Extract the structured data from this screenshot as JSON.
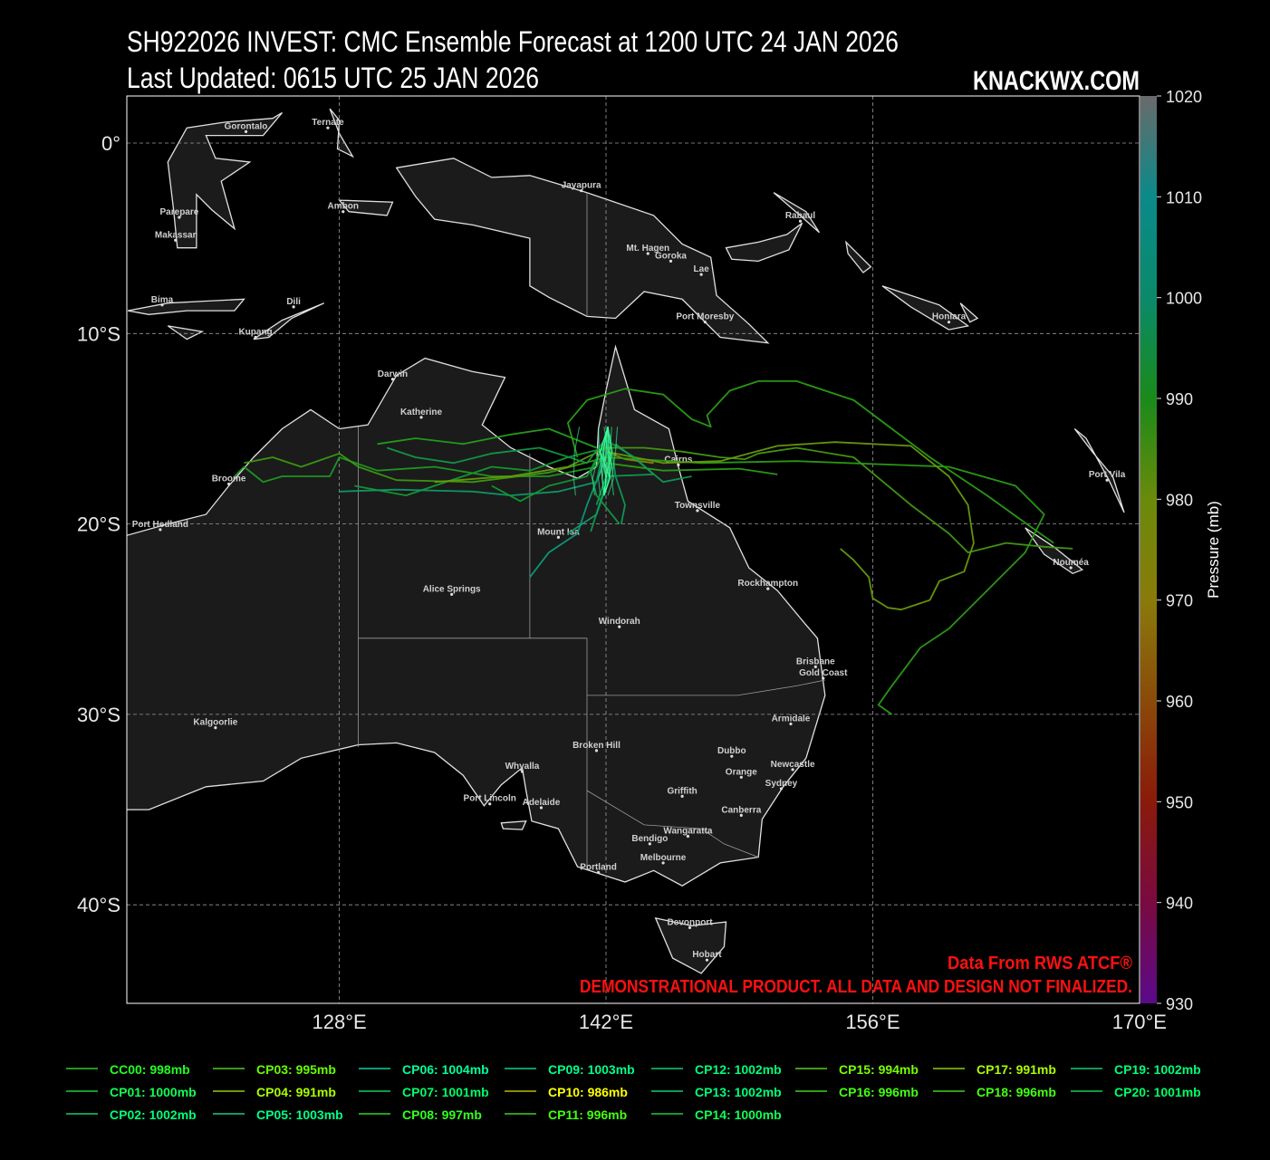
{
  "header": {
    "title": "SH922026 INVEST: CMC Ensemble Forecast at 1200 UTC 24 JAN 2026",
    "updated": "Last Updated: 0615 UTC 25 JAN 2026",
    "brand": "KNACKWX.COM"
  },
  "footer": {
    "source": "Data From RWS ATCF®",
    "disclaimer": "DEMONSTRATIONAL PRODUCT. ALL DATA AND DESIGN NOT FINALIZED."
  },
  "map": {
    "extent_lon": [
      116.8,
      170
    ],
    "extent_lat": [
      -45.2,
      2.5
    ],
    "lon_ticks": [
      {
        "v": 128,
        "label": "128°E"
      },
      {
        "v": 142,
        "label": "142°E"
      },
      {
        "v": 156,
        "label": "156°E"
      },
      {
        "v": 170,
        "label": "170°E"
      }
    ],
    "lat_ticks": [
      {
        "v": 0,
        "label": "0°"
      },
      {
        "v": -10,
        "label": "10°S"
      },
      {
        "v": -20,
        "label": "20°S"
      },
      {
        "v": -30,
        "label": "30°S"
      },
      {
        "v": -40,
        "label": "40°S"
      }
    ],
    "colors": {
      "land": "#1b1b1b",
      "ocean": "#000000",
      "coast": "#e0e0e0",
      "grid": "#9a9a9a"
    },
    "cities": [
      {
        "name": "Gorontalo",
        "lon": 123.1,
        "lat": 0.6
      },
      {
        "name": "Ternate",
        "lon": 127.4,
        "lat": 0.8
      },
      {
        "name": "Jayapura",
        "lon": 140.7,
        "lat": -2.5
      },
      {
        "name": "Parepare",
        "lon": 119.6,
        "lat": -3.9
      },
      {
        "name": "Makassar",
        "lon": 119.4,
        "lat": -5.1
      },
      {
        "name": "Ambon",
        "lon": 128.2,
        "lat": -3.6
      },
      {
        "name": "Rabaul",
        "lon": 152.2,
        "lat": -4.1
      },
      {
        "name": "Mt. Hagen",
        "lon": 144.2,
        "lat": -5.8
      },
      {
        "name": "Goroka",
        "lon": 145.4,
        "lat": -6.2
      },
      {
        "name": "Lae",
        "lon": 147.0,
        "lat": -6.9
      },
      {
        "name": "Port Moresby",
        "lon": 147.2,
        "lat": -9.4
      },
      {
        "name": "Honiara",
        "lon": 160.0,
        "lat": -9.4
      },
      {
        "name": "Bima",
        "lon": 118.7,
        "lat": -8.5
      },
      {
        "name": "Dili",
        "lon": 125.6,
        "lat": -8.6
      },
      {
        "name": "Kupang",
        "lon": 123.6,
        "lat": -10.2
      },
      {
        "name": "Darwin",
        "lon": 130.8,
        "lat": -12.4
      },
      {
        "name": "Katherine",
        "lon": 132.3,
        "lat": -14.4
      },
      {
        "name": "Broome",
        "lon": 122.2,
        "lat": -17.9
      },
      {
        "name": "Port Hedland",
        "lon": 118.6,
        "lat": -20.3
      },
      {
        "name": "Cairns",
        "lon": 145.8,
        "lat": -16.9
      },
      {
        "name": "Townsville",
        "lon": 146.8,
        "lat": -19.3
      },
      {
        "name": "Mount Isa",
        "lon": 139.5,
        "lat": -20.7
      },
      {
        "name": "Port Vila",
        "lon": 168.3,
        "lat": -17.7
      },
      {
        "name": "Nouméa",
        "lon": 166.4,
        "lat": -22.3
      },
      {
        "name": "Alice Springs",
        "lon": 133.9,
        "lat": -23.7
      },
      {
        "name": "Rockhampton",
        "lon": 150.5,
        "lat": -23.4
      },
      {
        "name": "Windorah",
        "lon": 142.7,
        "lat": -25.4
      },
      {
        "name": "Brisbane",
        "lon": 153.0,
        "lat": -27.5
      },
      {
        "name": "Gold Coast",
        "lon": 153.4,
        "lat": -28.1
      },
      {
        "name": "Armidale",
        "lon": 151.7,
        "lat": -30.5
      },
      {
        "name": "Kalgoorlie",
        "lon": 121.5,
        "lat": -30.7
      },
      {
        "name": "Broken Hill",
        "lon": 141.5,
        "lat": -31.9
      },
      {
        "name": "Dubbo",
        "lon": 148.6,
        "lat": -32.2
      },
      {
        "name": "Orange",
        "lon": 149.1,
        "lat": -33.3
      },
      {
        "name": "Newcastle",
        "lon": 151.8,
        "lat": -32.9
      },
      {
        "name": "Sydney",
        "lon": 151.2,
        "lat": -33.9
      },
      {
        "name": "Whyalla",
        "lon": 137.6,
        "lat": -33.0
      },
      {
        "name": "Port Lincoln",
        "lon": 135.9,
        "lat": -34.7
      },
      {
        "name": "Adelaide",
        "lon": 138.6,
        "lat": -34.9
      },
      {
        "name": "Griffith",
        "lon": 146.0,
        "lat": -34.3
      },
      {
        "name": "Canberra",
        "lon": 149.1,
        "lat": -35.3
      },
      {
        "name": "Wangaratta",
        "lon": 146.3,
        "lat": -36.4
      },
      {
        "name": "Bendigo",
        "lon": 144.3,
        "lat": -36.8
      },
      {
        "name": "Melbourne",
        "lon": 145.0,
        "lat": -37.8
      },
      {
        "name": "Portland",
        "lon": 141.6,
        "lat": -38.3
      },
      {
        "name": "Devonport",
        "lon": 146.4,
        "lat": -41.2
      },
      {
        "name": "Hobart",
        "lon": 147.3,
        "lat": -42.9
      }
    ]
  },
  "colorbar": {
    "label": "Pressure (mb)",
    "range": [
      930,
      1020
    ],
    "ticks": [
      "930",
      "940",
      "950",
      "960",
      "970",
      "980",
      "990",
      "1000",
      "1010",
      "1020"
    ],
    "stops": [
      "#5a0a8a",
      "#7a0a40",
      "#8a1a0a",
      "#8a4a0a",
      "#8a7a0a",
      "#6a8a0a",
      "#1a8a1a",
      "#0a8a6a",
      "#0a8a8a",
      "#6a6a6a"
    ]
  },
  "members": [
    {
      "label": "CC00: 998mb",
      "color": "#1f9a22",
      "label_color": "#22ff22",
      "track": [
        [
          142,
          -16
        ],
        [
          141.5,
          -17
        ],
        [
          139,
          -17.5
        ],
        [
          136,
          -17.5
        ],
        [
          133,
          -17
        ],
        [
          130,
          -17.2
        ],
        [
          128,
          -16.5
        ],
        [
          127.5,
          -17.5
        ],
        [
          125,
          -17.5
        ],
        [
          124,
          -17.8
        ],
        [
          123,
          -17
        ],
        [
          122.5,
          -17.5
        ]
      ]
    },
    {
      "label": "CP01: 1000mb",
      "color": "#129a30",
      "label_color": "#11ff55",
      "track": [
        [
          142,
          -16
        ],
        [
          140,
          -16.5
        ],
        [
          138,
          -17.2
        ],
        [
          136,
          -17
        ],
        [
          133,
          -18
        ],
        [
          131.5,
          -18.5
        ],
        [
          128.8,
          -18
        ]
      ]
    },
    {
      "label": "CP02: 1002mb",
      "color": "#0f9a55",
      "label_color": "#00ff77",
      "track": [
        [
          142.5,
          -15.8
        ],
        [
          143.8,
          -16.8
        ],
        [
          145,
          -17.8
        ],
        [
          146.5,
          -17.5
        ]
      ]
    },
    {
      "label": "CP03: 995mb",
      "color": "#3c9a12",
      "label_color": "#66ff00",
      "track": [
        [
          142,
          -16.5
        ],
        [
          139,
          -17.3
        ],
        [
          135,
          -17.8
        ],
        [
          131,
          -17.7
        ],
        [
          129,
          -17
        ],
        [
          128,
          -16.3
        ],
        [
          126,
          -17
        ],
        [
          124.5,
          -16.5
        ],
        [
          123,
          -16.8
        ]
      ]
    },
    {
      "label": "CP04: 991mb",
      "color": "#6a9a0a",
      "label_color": "#aaff00",
      "track": [
        [
          142,
          -16
        ],
        [
          140,
          -17
        ],
        [
          137,
          -17.5
        ],
        [
          135.5,
          -17.6
        ],
        [
          133,
          -17.8
        ]
      ]
    },
    {
      "label": "CP05: 1003mb",
      "color": "#0e9a66",
      "label_color": "#00ff88",
      "track": [
        [
          142,
          -15.5
        ],
        [
          142.2,
          -17.5
        ],
        [
          141.5,
          -19.5
        ],
        [
          140,
          -20.5
        ]
      ]
    },
    {
      "label": "CP06: 1004mb",
      "color": "#0d9a78",
      "label_color": "#00ff99",
      "track": [
        [
          142,
          -15.3
        ],
        [
          141.8,
          -17
        ],
        [
          141,
          -19
        ],
        [
          140.5,
          -20.5
        ],
        [
          139,
          -21.5
        ],
        [
          138,
          -22.8
        ]
      ]
    },
    {
      "label": "CP07: 1001mb",
      "color": "#109a44",
      "label_color": "#00ff66",
      "track": [
        [
          142,
          -15.5
        ],
        [
          141,
          -16.8
        ],
        [
          138.5,
          -16
        ],
        [
          136,
          -16.3
        ],
        [
          134,
          -16.8
        ],
        [
          132,
          -16.5
        ],
        [
          130.5,
          -16
        ]
      ]
    },
    {
      "label": "CP08: 997mb",
      "color": "#23a01a",
      "label_color": "#33ff22",
      "track": [
        [
          141.5,
          -16
        ],
        [
          139,
          -15
        ],
        [
          137,
          -15.3
        ],
        [
          134.5,
          -15.8
        ],
        [
          132,
          -15.5
        ],
        [
          130,
          -15.8
        ]
      ]
    },
    {
      "label": "CP09: 1003mb",
      "color": "#0e9a66",
      "label_color": "#00ff88",
      "track": [
        [
          142,
          -15.5
        ],
        [
          141.5,
          -17.8
        ],
        [
          139.5,
          -18.3
        ],
        [
          137,
          -18.5
        ],
        [
          135,
          -18.3
        ],
        [
          131,
          -18.2
        ],
        [
          128,
          -18.3
        ]
      ]
    },
    {
      "label": "CP10: 986mb",
      "color": "#8a8a0a",
      "label_color": "#ffff00",
      "track": [
        [
          142,
          -16.2
        ],
        [
          143,
          -16.6
        ],
        [
          144.5,
          -16.8
        ]
      ]
    },
    {
      "label": "CP11: 996mb",
      "color": "#2a9e16",
      "label_color": "#44ff11",
      "track": [
        [
          140.5,
          -16.5
        ],
        [
          140,
          -14.7
        ],
        [
          141,
          -13.5
        ],
        [
          143,
          -12.9
        ],
        [
          145,
          -13.2
        ],
        [
          146.5,
          -14.5
        ],
        [
          147.5,
          -14.9
        ],
        [
          147.3,
          -14.3
        ],
        [
          148.5,
          -13
        ],
        [
          150,
          -12.5
        ],
        [
          152,
          -12.5
        ],
        [
          155,
          -13.5
        ],
        [
          157,
          -15
        ],
        [
          159,
          -16.5
        ],
        [
          162,
          -18.5
        ],
        [
          164.5,
          -20.3
        ],
        [
          165.5,
          -21
        ]
      ]
    },
    {
      "label": "CP12: 1002mb",
      "color": "#0f9a55",
      "label_color": "#00ff77",
      "track": [
        [
          142.2,
          -15.3
        ],
        [
          142.5,
          -17.5
        ],
        [
          143,
          -19
        ],
        [
          142.8,
          -20
        ]
      ]
    },
    {
      "label": "CP13: 1002mb",
      "color": "#0f9a55",
      "label_color": "#00ff77",
      "track": [
        [
          142,
          -15.5
        ],
        [
          142.3,
          -17
        ],
        [
          141.8,
          -18.5
        ],
        [
          141.2,
          -20.4
        ]
      ]
    },
    {
      "label": "CP14: 1000mb",
      "color": "#129a30",
      "label_color": "#11ff55",
      "track": [
        [
          141.8,
          -16
        ],
        [
          141,
          -17.5
        ],
        [
          139,
          -18
        ],
        [
          137.5,
          -18.8
        ],
        [
          136,
          -18
        ]
      ]
    },
    {
      "label": "CP15: 994mb",
      "color": "#449a12",
      "label_color": "#77ff00",
      "track": [
        [
          142,
          -16
        ],
        [
          144,
          -16
        ],
        [
          146,
          -16.2
        ],
        [
          148,
          -16.5
        ],
        [
          149.3,
          -16.6
        ],
        [
          150,
          -16.3
        ],
        [
          152,
          -16
        ],
        [
          155,
          -16.5
        ],
        [
          158,
          -19
        ],
        [
          160,
          -20.5
        ],
        [
          161,
          -21.5
        ],
        [
          163,
          -21
        ],
        [
          165,
          -21.2
        ],
        [
          166.5,
          -21.3
        ]
      ]
    },
    {
      "label": "CP16: 996mb",
      "color": "#2a9e16",
      "label_color": "#44ff11",
      "track": [
        [
          142,
          -16.5
        ],
        [
          147,
          -16.8
        ],
        [
          152,
          -16.7
        ],
        [
          160,
          -17
        ],
        [
          163.5,
          -18
        ],
        [
          165,
          -19.5
        ],
        [
          164,
          -21.5
        ],
        [
          162,
          -23.5
        ],
        [
          160,
          -25.5
        ],
        [
          158.5,
          -26.5
        ],
        [
          157,
          -28.5
        ],
        [
          156.3,
          -29.5
        ],
        [
          157,
          -30
        ]
      ]
    },
    {
      "label": "CP17: 991mb",
      "color": "#6a9a0a",
      "label_color": "#aaff00",
      "track": [
        [
          142,
          -16.2
        ],
        [
          145,
          -16.8
        ],
        [
          148,
          -16.7
        ],
        [
          151,
          -15.9
        ],
        [
          154,
          -15.7
        ],
        [
          158,
          -15.9
        ],
        [
          160,
          -17.5
        ],
        [
          161,
          -19
        ],
        [
          161.3,
          -21
        ],
        [
          160.8,
          -22.5
        ],
        [
          159.5,
          -23
        ],
        [
          159,
          -24
        ],
        [
          157.5,
          -24.5
        ],
        [
          156.8,
          -24.4
        ],
        [
          156,
          -23.9
        ],
        [
          155.8,
          -22.8
        ],
        [
          155,
          -21.9
        ],
        [
          154.3,
          -21.3
        ]
      ]
    },
    {
      "label": "CP18: 996mb",
      "color": "#2a9e16",
      "label_color": "#44ff11",
      "track": [
        [
          142,
          -16.8
        ],
        [
          145,
          -17.2
        ],
        [
          149,
          -17.1
        ],
        [
          151,
          -17.4
        ]
      ]
    },
    {
      "label": "CP19: 1002mb",
      "color": "#0f9a55",
      "label_color": "#00ff77",
      "track": [
        [
          142,
          -15.6
        ],
        [
          143.5,
          -16.5
        ],
        [
          144.5,
          -17.4
        ],
        [
          142,
          -17.5
        ],
        [
          141.5,
          -19
        ]
      ]
    },
    {
      "label": "CP20: 1001mb",
      "color": "#109a44",
      "label_color": "#00ff66",
      "track": [
        [
          142,
          -15.6
        ],
        [
          141.2,
          -17.3
        ],
        [
          141.5,
          -18.5
        ],
        [
          142.7,
          -20
        ]
      ]
    }
  ]
}
